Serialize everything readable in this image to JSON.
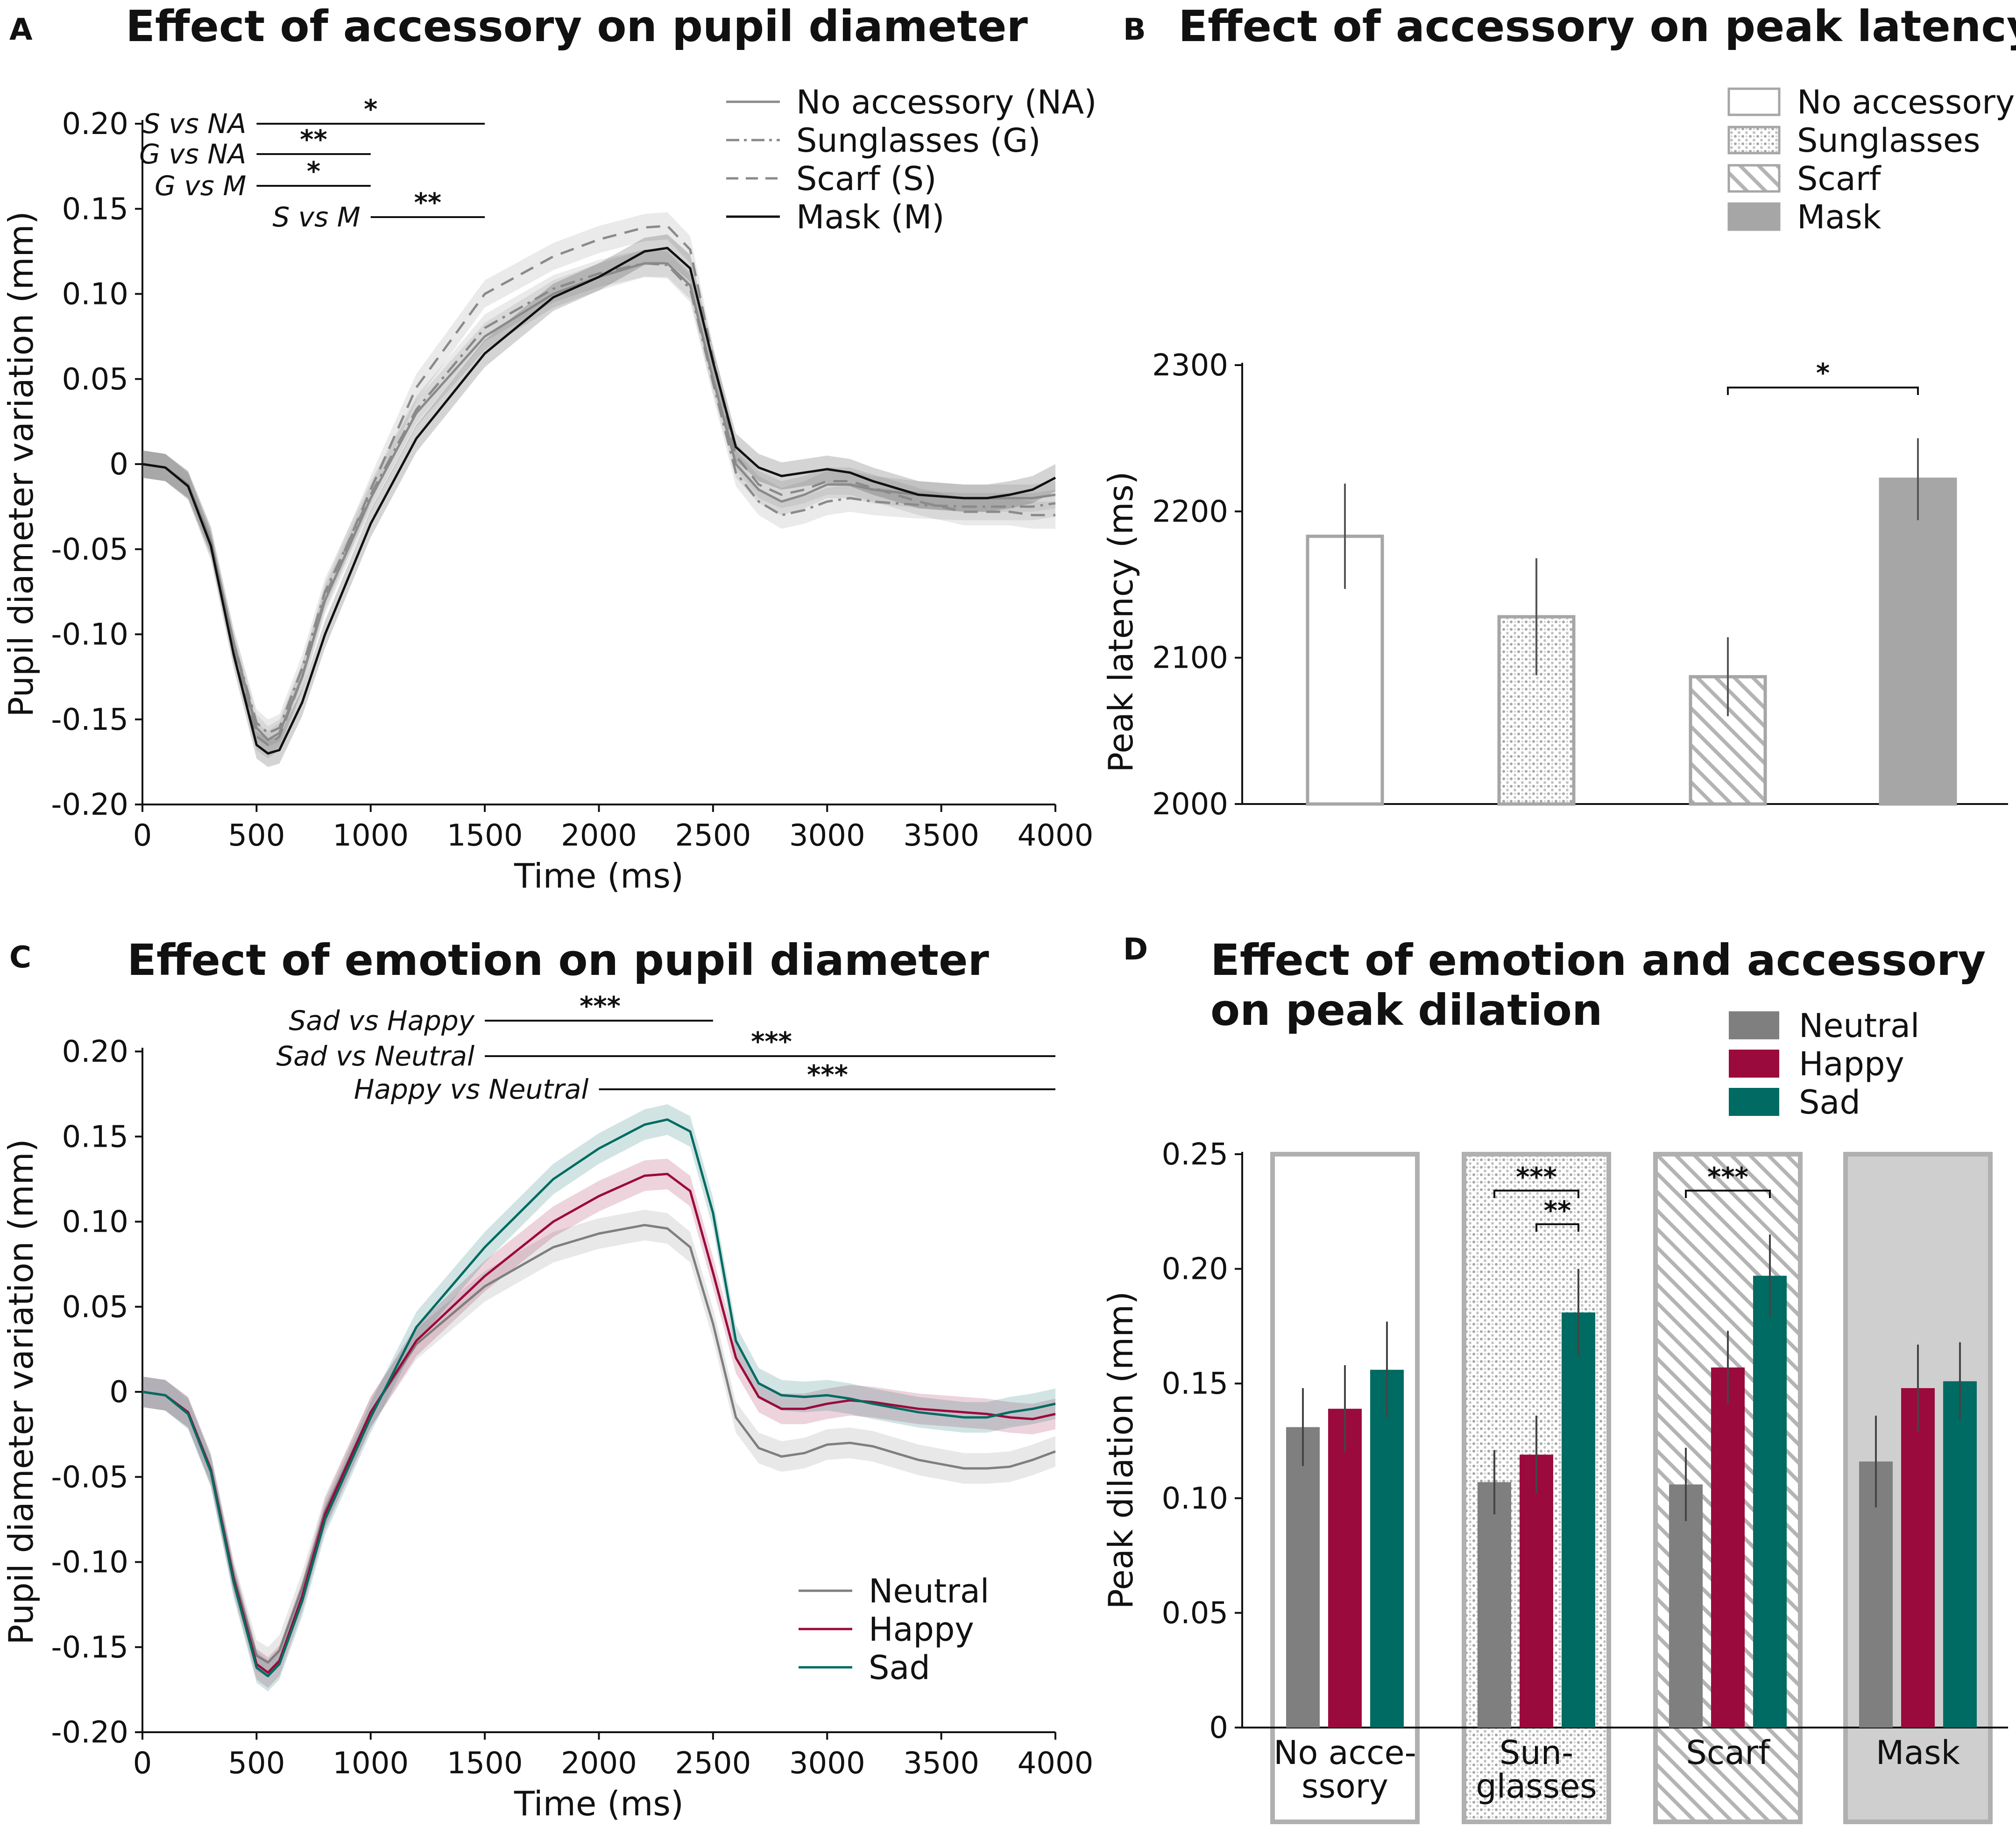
{
  "chart_data": [
    {
      "panel": "A",
      "type": "line",
      "title": "Effect of accessory on pupil diameter",
      "xlabel": "Time (ms)",
      "ylabel": "Pupil diameter variation (mm)",
      "xlim": [
        0,
        4000
      ],
      "ylim": [
        -0.2,
        0.2
      ],
      "xticks": [
        0,
        500,
        1000,
        1500,
        2000,
        2500,
        3000,
        3500,
        4000
      ],
      "yticks": [
        -0.2,
        -0.15,
        -0.1,
        -0.05,
        0,
        0.05,
        0.1,
        0.15,
        0.2
      ],
      "ytick_labels": [
        "-0.20",
        "-0.15",
        "-0.10",
        "-0.05",
        "0",
        "0.05",
        "0.10",
        "0.15",
        "0.20"
      ],
      "x": [
        0,
        100,
        200,
        300,
        400,
        500,
        550,
        600,
        700,
        800,
        1000,
        1200,
        1500,
        1800,
        2000,
        2200,
        2300,
        2400,
        2500,
        2600,
        2700,
        2800,
        2900,
        3000,
        3100,
        3200,
        3400,
        3600,
        3700,
        3800,
        3900,
        4000
      ],
      "band_halfwidth": 0.008,
      "series": [
        {
          "name": "No accessory (NA)",
          "color": "#8a8a8a",
          "dash": "solid",
          "width": 5,
          "values": [
            0,
            -0.002,
            -0.012,
            -0.045,
            -0.105,
            -0.155,
            -0.162,
            -0.158,
            -0.125,
            -0.08,
            -0.02,
            0.03,
            0.075,
            0.1,
            0.11,
            0.118,
            0.118,
            0.105,
            0.05,
            0.0,
            -0.015,
            -0.022,
            -0.018,
            -0.012,
            -0.012,
            -0.015,
            -0.018,
            -0.02,
            -0.02,
            -0.02,
            -0.02,
            -0.018
          ]
        },
        {
          "name": "Sunglasses (G)",
          "color": "#8a8a8a",
          "dash": "dashdot",
          "width": 5,
          "values": [
            0,
            -0.002,
            -0.012,
            -0.045,
            -0.105,
            -0.152,
            -0.158,
            -0.155,
            -0.12,
            -0.075,
            -0.018,
            0.032,
            0.08,
            0.103,
            0.112,
            0.118,
            0.117,
            0.103,
            0.048,
            -0.005,
            -0.022,
            -0.03,
            -0.027,
            -0.022,
            -0.02,
            -0.022,
            -0.024,
            -0.025,
            -0.025,
            -0.025,
            -0.025,
            -0.023
          ]
        },
        {
          "name": "Scarf (S)",
          "color": "#8a8a8a",
          "dash": "dash",
          "width": 5,
          "values": [
            0,
            -0.002,
            -0.012,
            -0.045,
            -0.108,
            -0.16,
            -0.165,
            -0.16,
            -0.125,
            -0.078,
            -0.015,
            0.045,
            0.1,
            0.122,
            0.132,
            0.139,
            0.14,
            0.126,
            0.062,
            0.005,
            -0.012,
            -0.018,
            -0.015,
            -0.01,
            -0.01,
            -0.014,
            -0.022,
            -0.028,
            -0.028,
            -0.028,
            -0.03,
            -0.03
          ]
        },
        {
          "name": "Mask (M)",
          "color": "#111111",
          "dash": "solid",
          "width": 5,
          "values": [
            0,
            -0.002,
            -0.013,
            -0.048,
            -0.112,
            -0.165,
            -0.17,
            -0.168,
            -0.14,
            -0.1,
            -0.035,
            0.015,
            0.065,
            0.098,
            0.11,
            0.125,
            0.127,
            0.115,
            0.06,
            0.01,
            -0.002,
            -0.007,
            -0.005,
            -0.003,
            -0.005,
            -0.01,
            -0.018,
            -0.02,
            -0.02,
            -0.018,
            -0.015,
            -0.008
          ]
        }
      ],
      "significance": [
        {
          "label": "S vs NA",
          "stars": "*",
          "x_start": 500,
          "x_end": 1500
        },
        {
          "label": "G vs NA",
          "stars": "**",
          "x_start": 500,
          "x_end": 1000
        },
        {
          "label": "G vs M",
          "stars": "*",
          "x_start": 500,
          "x_end": 1000
        },
        {
          "label": "S vs M",
          "stars": "**",
          "x_start": 1000,
          "x_end": 1500
        }
      ],
      "legend": "top-right"
    },
    {
      "panel": "B",
      "type": "bar",
      "title": "Effect of accessory on peak latency",
      "xlabel": "",
      "ylabel": "Peak latency (ms)",
      "ylim": [
        2000,
        2300
      ],
      "yticks": [
        2000,
        2100,
        2200,
        2300
      ],
      "categories": [
        "No accessory",
        "Sunglasses",
        "Scarf",
        "Mask"
      ],
      "values": [
        2183,
        2128,
        2087,
        2222
      ],
      "errors": [
        36,
        40,
        27,
        28
      ],
      "fills": [
        "none",
        "dotted",
        "hatched",
        "solid-gray"
      ],
      "significance": [
        {
          "from": "Scarf",
          "to": "Mask",
          "stars": "*"
        }
      ],
      "legend": "top-right"
    },
    {
      "panel": "C",
      "type": "line",
      "title": "Effect of emotion on pupil diameter",
      "xlabel": "Time (ms)",
      "ylabel": "Pupil diameter variation (mm)",
      "xlim": [
        0,
        4000
      ],
      "ylim": [
        -0.2,
        0.2
      ],
      "xticks": [
        0,
        500,
        1000,
        1500,
        2000,
        2500,
        3000,
        3500,
        4000
      ],
      "yticks": [
        -0.2,
        -0.15,
        -0.1,
        -0.05,
        0,
        0.05,
        0.1,
        0.15,
        0.2
      ],
      "ytick_labels": [
        "-0.20",
        "-0.15",
        "-0.10",
        "-0.05",
        "0",
        "0.05",
        "0.10",
        "0.15",
        "0.20"
      ],
      "x": [
        0,
        100,
        200,
        300,
        400,
        500,
        550,
        600,
        700,
        800,
        1000,
        1200,
        1500,
        1800,
        2000,
        2200,
        2300,
        2400,
        2500,
        2600,
        2700,
        2800,
        2900,
        3000,
        3100,
        3200,
        3400,
        3600,
        3700,
        3800,
        3900,
        4000
      ],
      "band_halfwidth": 0.009,
      "series": [
        {
          "name": "Neutral",
          "color": "#7f7f7f",
          "dash": "solid",
          "width": 5,
          "values": [
            0,
            -0.002,
            -0.012,
            -0.045,
            -0.108,
            -0.155,
            -0.159,
            -0.152,
            -0.115,
            -0.07,
            -0.012,
            0.028,
            0.062,
            0.085,
            0.093,
            0.098,
            0.096,
            0.085,
            0.04,
            -0.015,
            -0.033,
            -0.038,
            -0.036,
            -0.031,
            -0.03,
            -0.032,
            -0.04,
            -0.045,
            -0.045,
            -0.044,
            -0.04,
            -0.035
          ]
        },
        {
          "name": "Happy",
          "color": "#9b0a3c",
          "dash": "solid",
          "width": 5,
          "values": [
            0,
            -0.002,
            -0.012,
            -0.046,
            -0.11,
            -0.16,
            -0.165,
            -0.158,
            -0.12,
            -0.072,
            -0.012,
            0.03,
            0.068,
            0.1,
            0.115,
            0.127,
            0.128,
            0.118,
            0.07,
            0.02,
            -0.003,
            -0.01,
            -0.01,
            -0.007,
            -0.005,
            -0.006,
            -0.01,
            -0.012,
            -0.013,
            -0.015,
            -0.016,
            -0.013
          ]
        },
        {
          "name": "Sad",
          "color": "#006b63",
          "dash": "solid",
          "width": 5,
          "values": [
            0,
            -0.002,
            -0.013,
            -0.047,
            -0.112,
            -0.162,
            -0.167,
            -0.16,
            -0.123,
            -0.075,
            -0.015,
            0.038,
            0.085,
            0.125,
            0.143,
            0.157,
            0.16,
            0.153,
            0.105,
            0.03,
            0.005,
            -0.002,
            -0.003,
            -0.002,
            -0.004,
            -0.007,
            -0.012,
            -0.015,
            -0.015,
            -0.012,
            -0.01,
            -0.007
          ]
        }
      ],
      "significance": [
        {
          "label": "Sad vs Happy",
          "stars": "***",
          "x_start": 1500,
          "x_end": 2500
        },
        {
          "label": "Sad vs Neutral",
          "stars": "***",
          "x_start": 1500,
          "x_end": 4000
        },
        {
          "label": "Happy vs Neutral",
          "stars": "***",
          "x_start": 2000,
          "x_end": 4000
        }
      ],
      "legend": "bottom-right"
    },
    {
      "panel": "D",
      "type": "bar",
      "title_line1": "Effect of emotion and accessory",
      "title_line2": "on peak dilation",
      "xlabel": "",
      "ylabel": "Peak dilation (mm)",
      "ylim": [
        0,
        0.25
      ],
      "yticks": [
        0,
        0.05,
        0.1,
        0.15,
        0.2,
        0.25
      ],
      "ytick_labels": [
        "0",
        "0.05",
        "0.10",
        "0.15",
        "0.20",
        "0.25"
      ],
      "groups": [
        {
          "line1": "No acce-",
          "line2": "ssory",
          "fill": "none"
        },
        {
          "line1": "Sun-",
          "line2": "glasses",
          "fill": "dotted"
        },
        {
          "line1": "Scarf",
          "line2": "",
          "fill": "hatched"
        },
        {
          "line1": "Mask",
          "line2": "",
          "fill": "solid-gray"
        }
      ],
      "series": [
        {
          "name": "Neutral",
          "color": "#7f7f7f",
          "values": [
            0.131,
            0.107,
            0.106,
            0.116
          ],
          "errors": [
            0.017,
            0.014,
            0.016,
            0.02
          ]
        },
        {
          "name": "Happy",
          "color": "#9b0a3c",
          "values": [
            0.139,
            0.119,
            0.157,
            0.148
          ],
          "errors": [
            0.019,
            0.017,
            0.016,
            0.019
          ]
        },
        {
          "name": "Sad",
          "color": "#006b63",
          "values": [
            0.156,
            0.181,
            0.197,
            0.151
          ],
          "errors": [
            0.021,
            0.019,
            0.018,
            0.017
          ]
        }
      ],
      "significance": [
        {
          "group": 1,
          "from": "Neutral",
          "to": "Sad",
          "stars": "***"
        },
        {
          "group": 1,
          "from": "Happy",
          "to": "Sad",
          "stars": "**"
        },
        {
          "group": 2,
          "from": "Neutral",
          "to": "Sad",
          "stars": "***"
        }
      ],
      "legend": "top-right"
    }
  ]
}
